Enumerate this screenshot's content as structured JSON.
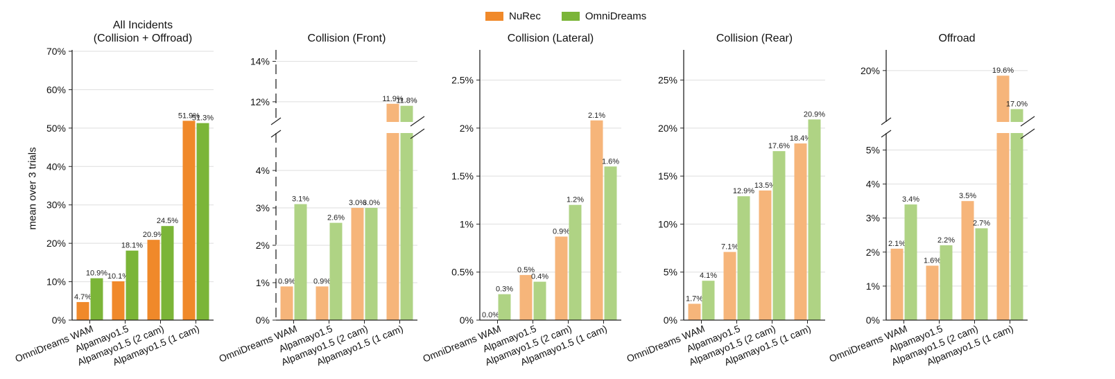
{
  "legend": {
    "items": [
      {
        "name": "NuRec",
        "color": "#f0892a"
      },
      {
        "name": "OmniDreams",
        "color": "#7bb538"
      }
    ]
  },
  "ylabel": "mean over 3 trials",
  "chart_data": [
    {
      "type": "bar",
      "title": "All Incidents\n(Collision + Offroad)",
      "categories": [
        "OmniDreams WAM",
        "Alpamayo1.5",
        "Alpamayo1.5 (2 cam)",
        "Alpamayo1.5 (1 cam)"
      ],
      "series": [
        {
          "name": "NuRec",
          "values": [
            4.7,
            10.1,
            20.9,
            51.9
          ],
          "labels": [
            "4.7%",
            "10.1%",
            "20.9%",
            "51.9%"
          ]
        },
        {
          "name": "OmniDreams",
          "values": [
            10.9,
            18.1,
            24.5,
            51.3
          ],
          "labels": [
            "10.9%",
            "18.1%",
            "24.5%",
            "51.3%"
          ]
        }
      ],
      "ylim": [
        0,
        70
      ],
      "yticks": [
        0,
        10,
        20,
        30,
        40,
        50,
        60,
        70
      ],
      "yticklabels": [
        "0%",
        "10%",
        "20%",
        "30%",
        "40%",
        "50%",
        "60%",
        "70%"
      ],
      "ylabel": "mean over 3 trials",
      "broken_axis": false,
      "light_colors": false
    },
    {
      "type": "bar",
      "title": "Collision (Front)",
      "categories": [
        "OmniDreams WAM",
        "Alpamayo1.5",
        "Alpamayo1.5 (2 cam)",
        "Alpamayo1.5 (1 cam)"
      ],
      "series": [
        {
          "name": "NuRec",
          "values": [
            0.9,
            0.9,
            3.0,
            11.9
          ],
          "labels": [
            "0.9%",
            "0.9%",
            "3.0%",
            "11.9%"
          ]
        },
        {
          "name": "OmniDreams",
          "values": [
            3.1,
            2.6,
            3.0,
            11.8
          ],
          "labels": [
            "3.1%",
            "2.6%",
            "3.0%",
            "11.8%"
          ]
        }
      ],
      "broken_axis": true,
      "ylim_lower": [
        0,
        5
      ],
      "ylim_upper": [
        11,
        14.5
      ],
      "yticks_lower": [
        0,
        1,
        2,
        3,
        4
      ],
      "yticklabels_lower": [
        "0%",
        "1%",
        "2%",
        "3%",
        "4%"
      ],
      "yticks_upper": [
        12,
        14
      ],
      "yticklabels_upper": [
        "12%",
        "14%"
      ],
      "dashed_spine": true,
      "light_colors": true
    },
    {
      "type": "bar",
      "title": "Collision (Lateral)",
      "categories": [
        "OmniDreams WAM",
        "Alpamayo1.5",
        "Alpamayo1.5 (2 cam)",
        "Alpamayo1.5 (1 cam)"
      ],
      "series": [
        {
          "name": "NuRec",
          "values": [
            0.0,
            0.47,
            0.87,
            2.08
          ],
          "labels": [
            "0.0%",
            "0.5%",
            "0.9%",
            "2.1%"
          ]
        },
        {
          "name": "OmniDreams",
          "values": [
            0.27,
            0.4,
            1.2,
            1.6
          ],
          "labels": [
            "0.3%",
            "0.4%",
            "1.2%",
            "1.6%"
          ]
        }
      ],
      "ylim": [
        0,
        2.8
      ],
      "yticks": [
        0,
        0.5,
        1,
        1.5,
        2,
        2.5
      ],
      "yticklabels": [
        "0%",
        "0.5%",
        "1%",
        "1.5%",
        "2%",
        "2.5%"
      ],
      "broken_axis": false,
      "light_colors": true
    },
    {
      "type": "bar",
      "title": "Collision (Rear)",
      "categories": [
        "OmniDreams WAM",
        "Alpamayo1.5",
        "Alpamayo1.5 (2 cam)",
        "Alpamayo1.5 (1 cam)"
      ],
      "series": [
        {
          "name": "NuRec",
          "values": [
            1.7,
            7.1,
            13.5,
            18.4
          ],
          "labels": [
            "1.7%",
            "7.1%",
            "13.5%",
            "18.4%"
          ]
        },
        {
          "name": "OmniDreams",
          "values": [
            4.1,
            12.9,
            17.6,
            20.9
          ],
          "labels": [
            "4.1%",
            "12.9%",
            "17.6%",
            "20.9%"
          ]
        }
      ],
      "ylim": [
        0,
        28
      ],
      "yticks": [
        0,
        5,
        10,
        15,
        20,
        25
      ],
      "yticklabels": [
        "0%",
        "5%",
        "10%",
        "15%",
        "20%",
        "25%"
      ],
      "broken_axis": false,
      "light_colors": true
    },
    {
      "type": "bar",
      "title": "Offroad",
      "categories": [
        "OmniDreams WAM",
        "Alpamayo1.5",
        "Alpamayo1.5 (2 cam)",
        "Alpamayo1.5 (1 cam)"
      ],
      "series": [
        {
          "name": "NuRec",
          "values": [
            2.1,
            1.6,
            3.5,
            19.6
          ],
          "labels": [
            "2.1%",
            "1.6%",
            "3.5%",
            "19.6%"
          ]
        },
        {
          "name": "OmniDreams",
          "values": [
            3.4,
            2.2,
            2.7,
            17.0
          ],
          "labels": [
            "3.4%",
            "2.2%",
            "2.7%",
            "17.0%"
          ]
        }
      ],
      "broken_axis": true,
      "ylim_lower": [
        0,
        5.5
      ],
      "ylim_upper": [
        16,
        21.5
      ],
      "yticks_lower": [
        0,
        1,
        2,
        3,
        4,
        5
      ],
      "yticklabels_lower": [
        "0%",
        "1%",
        "2%",
        "3%",
        "4%",
        "5%"
      ],
      "yticks_upper": [
        20
      ],
      "yticklabels_upper": [
        "20%"
      ],
      "dashed_spine": false,
      "light_colors": true
    }
  ]
}
